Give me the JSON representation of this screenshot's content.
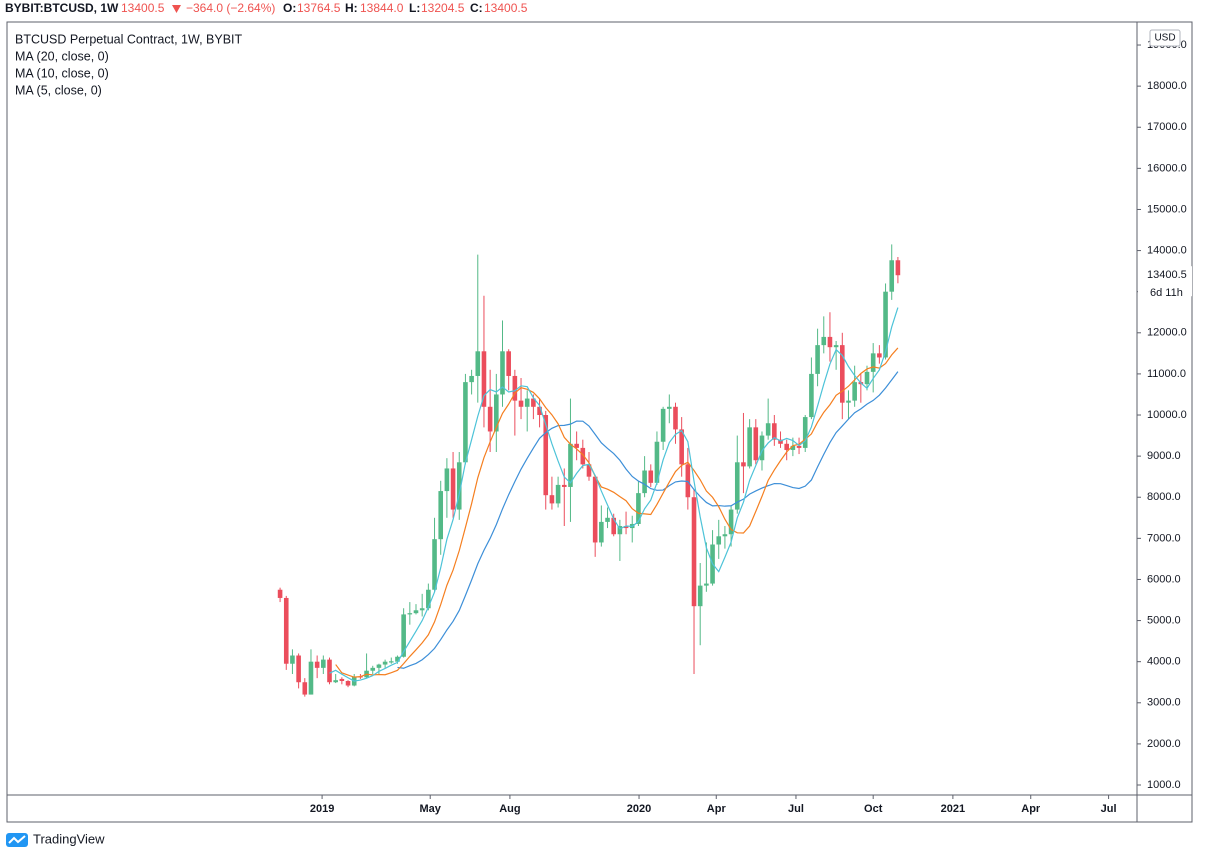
{
  "header": {
    "symbol": "BYBIT:BTCUSD, 1W",
    "last": "13400.5",
    "change": "−364.0 (−2.64%)",
    "ohlc": [
      {
        "label": "O:",
        "value": "13764.5"
      },
      {
        "label": "H:",
        "value": "13844.0"
      },
      {
        "label": "L:",
        "value": "13204.5"
      },
      {
        "label": "C:",
        "value": "13400.5"
      }
    ]
  },
  "chart_data": {
    "type": "candlestick",
    "title": "BTCUSD Perpetual Contract, 1W, BYBIT",
    "currency": "USD",
    "countdown": "6d 11h",
    "up_color": "#53b987",
    "down_color": "#eb4d5c",
    "xlim": [
      -44.2,
      138.7
    ],
    "xticks": [
      {
        "value": 6.8,
        "label": "2019"
      },
      {
        "value": 24.3,
        "label": "May"
      },
      {
        "value": 37.2,
        "label": "Aug"
      },
      {
        "value": 58.1,
        "label": "2020"
      },
      {
        "value": 70.6,
        "label": "Apr"
      },
      {
        "value": 83.5,
        "label": "Jul"
      },
      {
        "value": 96,
        "label": "Oct"
      },
      {
        "value": 108.9,
        "label": "2021"
      },
      {
        "value": 121.5,
        "label": "Apr"
      },
      {
        "value": 134.1,
        "label": "Jul"
      }
    ],
    "ylim": [
      757,
      19560
    ],
    "yticks": [
      {
        "value": 1000,
        "label": "1000.0"
      },
      {
        "value": 2000,
        "label": "2000.0"
      },
      {
        "value": 3000,
        "label": "3000.0"
      },
      {
        "value": 4000,
        "label": "4000.0"
      },
      {
        "value": 5000,
        "label": "5000.0"
      },
      {
        "value": 6000,
        "label": "6000.0"
      },
      {
        "value": 7000,
        "label": "7000.0"
      },
      {
        "value": 8000,
        "label": "8000.0"
      },
      {
        "value": 9000,
        "label": "9000.0"
      },
      {
        "value": 10000,
        "label": "10000.0"
      },
      {
        "value": 11000,
        "label": "11000.0"
      },
      {
        "value": 12000,
        "label": "12000.0"
      },
      {
        "value": 13000,
        "label": "13000.0"
      },
      {
        "value": 14000,
        "label": "14000.0"
      },
      {
        "value": 15000,
        "label": "15000.0"
      },
      {
        "value": 16000,
        "label": "16000.0"
      },
      {
        "value": 17000,
        "label": "17000.0"
      },
      {
        "value": 18000,
        "label": "18000.0"
      },
      {
        "value": 19000,
        "label": "19000.0"
      }
    ],
    "candles": {
      "open": [
        5750,
        5550,
        3950,
        4150,
        3500,
        3200,
        4000,
        3850,
        4050,
        3500,
        3580,
        3530,
        3420,
        3640,
        3620,
        3780,
        3850,
        3930,
        3980,
        4000,
        4120,
        5150,
        5180,
        5250,
        5300,
        5750,
        6980,
        8150,
        8700,
        7700,
        8850,
        10800,
        10950,
        11550,
        10200,
        9600,
        10500,
        11550,
        10950,
        10350,
        10200,
        10400,
        10200,
        10000,
        8050,
        7850,
        8300,
        8250,
        9300,
        9200,
        8800,
        8500,
        6900,
        7400,
        7500,
        7100,
        7300,
        7250,
        7350,
        8100,
        8650,
        8350,
        9350,
        10150,
        10200,
        9650,
        8800,
        8000,
        5350,
        5850,
        5900,
        6850,
        7050,
        7100,
        7700,
        8850,
        8750,
        9700,
        8900,
        9500,
        9800,
        9400,
        9300,
        9150,
        9250,
        9200,
        9950,
        11000,
        11700,
        11900,
        11650,
        11700,
        10300,
        10350,
        10800,
        10750,
        11050,
        11500,
        11400,
        13000,
        13764.5
      ],
      "high": [
        5800,
        5600,
        4300,
        4200,
        3600,
        4300,
        4150,
        4150,
        4100,
        3700,
        3620,
        3550,
        3700,
        3700,
        4200,
        3900,
        3950,
        4050,
        4100,
        4150,
        5300,
        5450,
        5400,
        5650,
        5900,
        7500,
        8400,
        8950,
        9100,
        9100,
        11000,
        11100,
        13900,
        12900,
        11100,
        11000,
        12300,
        11600,
        11100,
        10900,
        10600,
        10500,
        10400,
        10100,
        8500,
        8500,
        8700,
        10400,
        9600,
        9400,
        9100,
        8500,
        7800,
        7750,
        7600,
        7450,
        7650,
        7550,
        8400,
        9000,
        8800,
        9600,
        10200,
        10500,
        10300,
        9950,
        9200,
        8200,
        6400,
        6900,
        7200,
        7450,
        7300,
        7800,
        9500,
        10050,
        9900,
        9900,
        9600,
        10400,
        10000,
        9600,
        9400,
        9450,
        9450,
        10000,
        11400,
        12100,
        12400,
        12500,
        11800,
        12000,
        10600,
        11200,
        11000,
        11200,
        11750,
        11700,
        13200,
        14150,
        13844
      ],
      "low": [
        5450,
        3800,
        3700,
        3350,
        3150,
        3200,
        3600,
        3700,
        3450,
        3480,
        3450,
        3380,
        3400,
        3580,
        3600,
        3700,
        3700,
        3850,
        3950,
        3950,
        4100,
        4900,
        5150,
        5100,
        5250,
        5700,
        6600,
        7500,
        7500,
        7450,
        8800,
        10500,
        10300,
        9700,
        9100,
        9100,
        10200,
        10600,
        9500,
        9900,
        9600,
        9900,
        9700,
        7700,
        7700,
        7750,
        7300,
        7400,
        8900,
        8700,
        8400,
        6550,
        6800,
        7250,
        7050,
        6450,
        7100,
        6900,
        7300,
        8000,
        8250,
        8300,
        9150,
        9800,
        9300,
        8500,
        7700,
        3700,
        4400,
        5700,
        5850,
        6500,
        6750,
        6800,
        7600,
        8100,
        8700,
        8800,
        8650,
        9400,
        9250,
        9200,
        8900,
        9000,
        9050,
        9100,
        9900,
        10700,
        11500,
        11300,
        11100,
        9900,
        9900,
        10200,
        10300,
        10600,
        10550,
        11250,
        11350,
        12800,
        13204.5
      ],
      "close": [
        5550,
        3950,
        4150,
        3500,
        3200,
        4000,
        3850,
        4050,
        3500,
        3550,
        3530,
        3420,
        3640,
        3620,
        3780,
        3850,
        3930,
        4000,
        4010,
        4120,
        5150,
        5180,
        5250,
        5300,
        5750,
        6980,
        8150,
        8700,
        7700,
        8850,
        10800,
        10950,
        11550,
        10200,
        9600,
        10500,
        11550,
        10950,
        10350,
        10200,
        10400,
        10200,
        10000,
        8050,
        7850,
        8300,
        8250,
        9300,
        9200,
        8800,
        8500,
        6900,
        7400,
        7500,
        7100,
        7300,
        7250,
        7350,
        8100,
        8650,
        8350,
        9350,
        10150,
        10200,
        9650,
        8800,
        8000,
        5350,
        5850,
        5900,
        6850,
        7050,
        7100,
        7700,
        8850,
        8750,
        9700,
        8900,
        9500,
        9800,
        9400,
        9300,
        9150,
        9250,
        9200,
        9950,
        11000,
        11700,
        11900,
        11650,
        11700,
        10300,
        10350,
        10800,
        10750,
        11050,
        11500,
        11400,
        13000,
        13764.5,
        13400.5
      ]
    },
    "series": [
      {
        "name": "MA (20, close, 0)",
        "color": "#3d8fd8",
        "values": [
          null,
          null,
          null,
          null,
          null,
          null,
          null,
          null,
          null,
          null,
          null,
          null,
          null,
          null,
          null,
          null,
          null,
          null,
          null,
          3860,
          3840,
          3902,
          3957,
          4047,
          4174,
          4323,
          4538,
          4771,
          4981,
          5246,
          5609,
          5986,
          6381,
          6710,
          7001,
          7334,
          7715,
          8062,
          8379,
          8683,
          8946,
          9197,
          9434,
          9572,
          9677,
          9743,
          9748,
          9778,
          9853,
          9850,
          9733,
          9530,
          9323,
          9188,
          9063,
          8900,
          8685,
          8505,
          8393,
          8315,
          8210,
          8168,
          8175,
          8283,
          8373,
          8395,
          8383,
          8185,
          8018,
          7873,
          7790,
          7798,
          7783,
          7793,
          7880,
          7953,
          8075,
          8153,
          8223,
          8280,
          8333,
          8330,
          8283,
          8235,
          8213,
          8270,
          8420,
          8740,
          9043,
          9330,
          9573,
          9735,
          9900,
          10055,
          10150,
          10265,
          10355,
          10483,
          10658,
          10856,
          11056
        ]
      },
      {
        "name": "MA (10, close, 0)",
        "color": "#f57f20",
        "values": [
          null,
          null,
          null,
          null,
          null,
          null,
          null,
          null,
          null,
          3930,
          3728,
          3675,
          3624,
          3636,
          3694,
          3679,
          3687,
          3682,
          3733,
          3790,
          3952,
          4128,
          4289,
          4457,
          4654,
          4967,
          5389,
          5859,
          6228,
          6701,
          7266,
          7843,
          8473,
          8963,
          9348,
          9700,
          10040,
          10265,
          10530,
          10665,
          10625,
          10550,
          10395,
          10180,
          10005,
          9785,
          9455,
          9290,
          9175,
          9035,
          8840,
          8510,
          8250,
          8195,
          8120,
          8015,
          7915,
          7720,
          7610,
          7595,
          7580,
          7825,
          8100,
          8370,
          8625,
          8775,
          8850,
          8650,
          8425,
          8150,
          8000,
          7770,
          7465,
          7215,
          7135,
          7130,
          7300,
          7655,
          8020,
          8410,
          8665,
          8890,
          9100,
          9255,
          9290,
          9410,
          9540,
          9825,
          10065,
          10250,
          10480,
          10580,
          10700,
          10855,
          11010,
          11120,
          11170,
          11140,
          11250,
          11462,
          11632
        ]
      },
      {
        "name": "MA (5, close, 0)",
        "color": "#4dc3d8",
        "values": [
          null,
          null,
          null,
          null,
          null,
          null,
          null,
          null,
          3720,
          3790,
          3696,
          3610,
          3528,
          3552,
          3598,
          3662,
          3764,
          3836,
          3914,
          3982,
          4242,
          4492,
          4742,
          5000,
          5326,
          5692,
          6286,
          6976,
          7456,
          8076,
          8840,
          9400,
          9970,
          10470,
          10620,
          10560,
          10680,
          10560,
          10590,
          10710,
          10690,
          10420,
          10230,
          9770,
          9300,
          8880,
          8490,
          8350,
          8580,
          8770,
          8800,
          8530,
          8150,
          7810,
          7470,
          7230,
          7300,
          7290,
          7410,
          7720,
          7930,
          8350,
          8910,
          9330,
          9530,
          9620,
          9350,
          8390,
          7520,
          6770,
          6380,
          6190,
          6540,
          6910,
          7500,
          7880,
          8410,
          8770,
          9130,
          9320,
          9450,
          9370,
          9430,
          9380,
          9260,
          9370,
          9710,
          10220,
          10750,
          11240,
          11590,
          11450,
          11180,
          10960,
          10780,
          10650,
          10890,
          11100,
          11540,
          12143,
          12613
        ]
      }
    ]
  },
  "footer": {
    "brand": "TradingView"
  }
}
